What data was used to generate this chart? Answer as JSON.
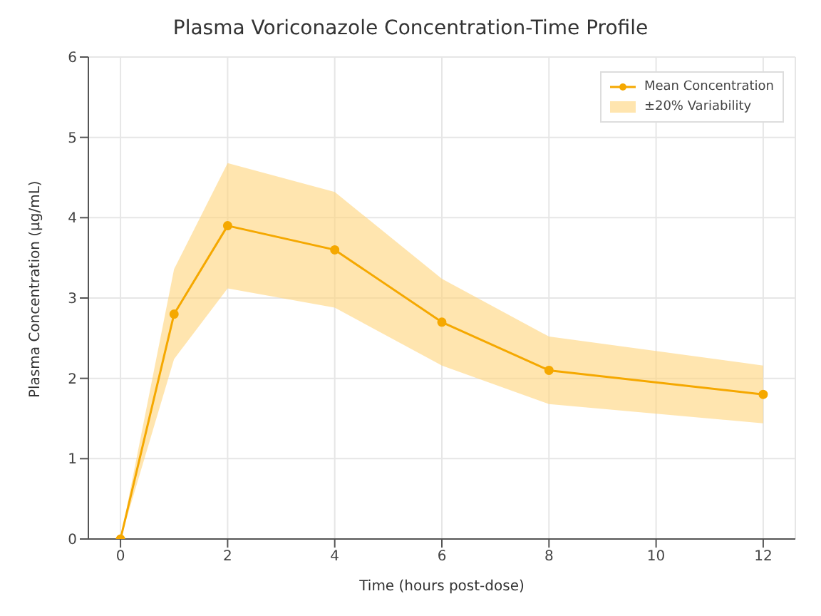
{
  "chart_data": {
    "type": "line",
    "title": "Plasma Voriconazole Concentration-Time Profile",
    "xlabel": "Time (hours post-dose)",
    "ylabel": "Plasma Concentration (µg/mL)",
    "x": [
      0,
      1,
      2,
      4,
      6,
      8,
      12
    ],
    "series": [
      {
        "name": "Mean Concentration",
        "color": "#f5a800",
        "values": [
          0,
          2.8,
          3.9,
          3.6,
          2.7,
          2.1,
          1.8
        ],
        "lower": [
          0,
          2.24,
          3.12,
          2.88,
          2.16,
          1.68,
          1.44
        ],
        "upper": [
          0,
          3.36,
          4.68,
          4.32,
          3.24,
          2.52,
          2.16
        ]
      }
    ],
    "annotations": [
      "±20% Variability"
    ],
    "xlim": [
      -0.6,
      12.6
    ],
    "xticks": [
      0,
      2,
      4,
      6,
      8,
      10,
      12
    ],
    "ylim": [
      0,
      6
    ],
    "yticks": [
      0,
      1,
      2,
      3,
      4,
      5,
      6
    ],
    "grid": true,
    "legend": "top right",
    "marker": "circle",
    "line_style": "solid"
  }
}
